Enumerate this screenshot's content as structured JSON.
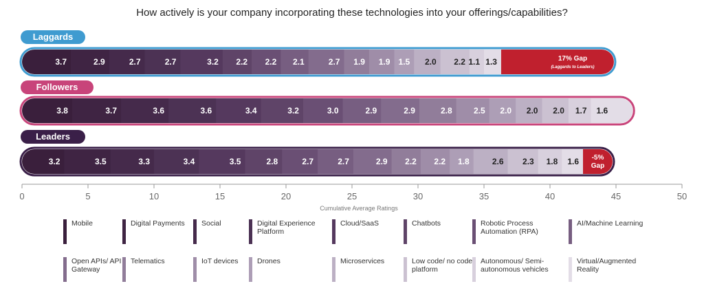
{
  "chart_data": {
    "type": "bar",
    "orientation": "horizontal-stacked",
    "title": "How actively is your company incorporating these technologies into your offerings/capabilities?",
    "xlabel": "Cumulative Average Ratings",
    "xlim": [
      0,
      50
    ],
    "xticks": [
      0,
      5,
      10,
      15,
      20,
      25,
      30,
      35,
      40,
      45,
      50
    ],
    "categories": [
      "Mobile",
      "Digital Payments",
      "Social",
      "Digital Experience Platform",
      "Cloud/SaaS",
      "Chatbots",
      "Robotic Process Automation (RPA)",
      "AI/Machine Learning",
      "Open APIs/ API Gateway",
      "Telematics",
      "IoT devices",
      "Drones",
      "Microservices",
      "Low code/ no code platform",
      "Autonomous/ Semi-autonomous vehicles",
      "Virtual/Augmented Reality"
    ],
    "series": [
      {
        "name": "Laggards",
        "values": [
          3.7,
          2.9,
          2.7,
          2.7,
          3.2,
          2.2,
          2.2,
          2.1,
          2.7,
          1.9,
          1.9,
          1.5,
          2.0,
          2.2,
          1.1,
          1.3
        ],
        "gap": {
          "line1": "17% Gap",
          "line2": "(Laggards to Leaders)"
        }
      },
      {
        "name": "Followers",
        "values": [
          3.8,
          3.7,
          3.6,
          3.6,
          3.4,
          3.2,
          3.0,
          2.9,
          2.9,
          2.8,
          2.5,
          2.0,
          2.0,
          2.0,
          1.7,
          1.6
        ]
      },
      {
        "name": "Leaders",
        "values": [
          3.2,
          3.5,
          3.3,
          3.4,
          3.5,
          2.8,
          2.7,
          2.7,
          2.9,
          2.2,
          2.2,
          1.8,
          2.6,
          2.3,
          1.8,
          1.6
        ],
        "gap": {
          "line1": "-5%",
          "line2": "Gap"
        }
      }
    ],
    "legend": [
      {
        "label": "Mobile",
        "color": "#3a1f3c"
      },
      {
        "label": "Digital Payments",
        "color": "#3f2443"
      },
      {
        "label": "Social",
        "color": "#452a4b"
      },
      {
        "label": "Digital Experience Platform",
        "color": "#4c3254"
      },
      {
        "label": "Cloud/SaaS",
        "color": "#55395e"
      },
      {
        "label": "Chatbots",
        "color": "#5f4468"
      },
      {
        "label": "Robotic Process Automation (RPA)",
        "color": "#6a4f74"
      },
      {
        "label": "AI/Machine Learning",
        "color": "#775e81"
      },
      {
        "label": "Open APIs/ API Gateway",
        "color": "#836c8d"
      },
      {
        "label": "Telematics",
        "color": "#917d9a"
      },
      {
        "label": "IoT devices",
        "color": "#9f8da8"
      },
      {
        "label": "Drones",
        "color": "#ad9eb6"
      },
      {
        "label": "Microservices",
        "color": "#bcb0c4"
      },
      {
        "label": "Low code/ no code platform",
        "color": "#cbc1d1"
      },
      {
        "label": "Autonomous/ Semi-autonomous vehicles",
        "color": "#d8d0dd"
      },
      {
        "label": "Virtual/Augmented Reality",
        "color": "#e3dde7"
      }
    ],
    "group_colors": {
      "Laggards": "#3f9bd0",
      "Followers": "#c8447a",
      "Leaders": "#3a1f48"
    },
    "gap_color": "#c0202e",
    "light_text_threshold": 12
  }
}
